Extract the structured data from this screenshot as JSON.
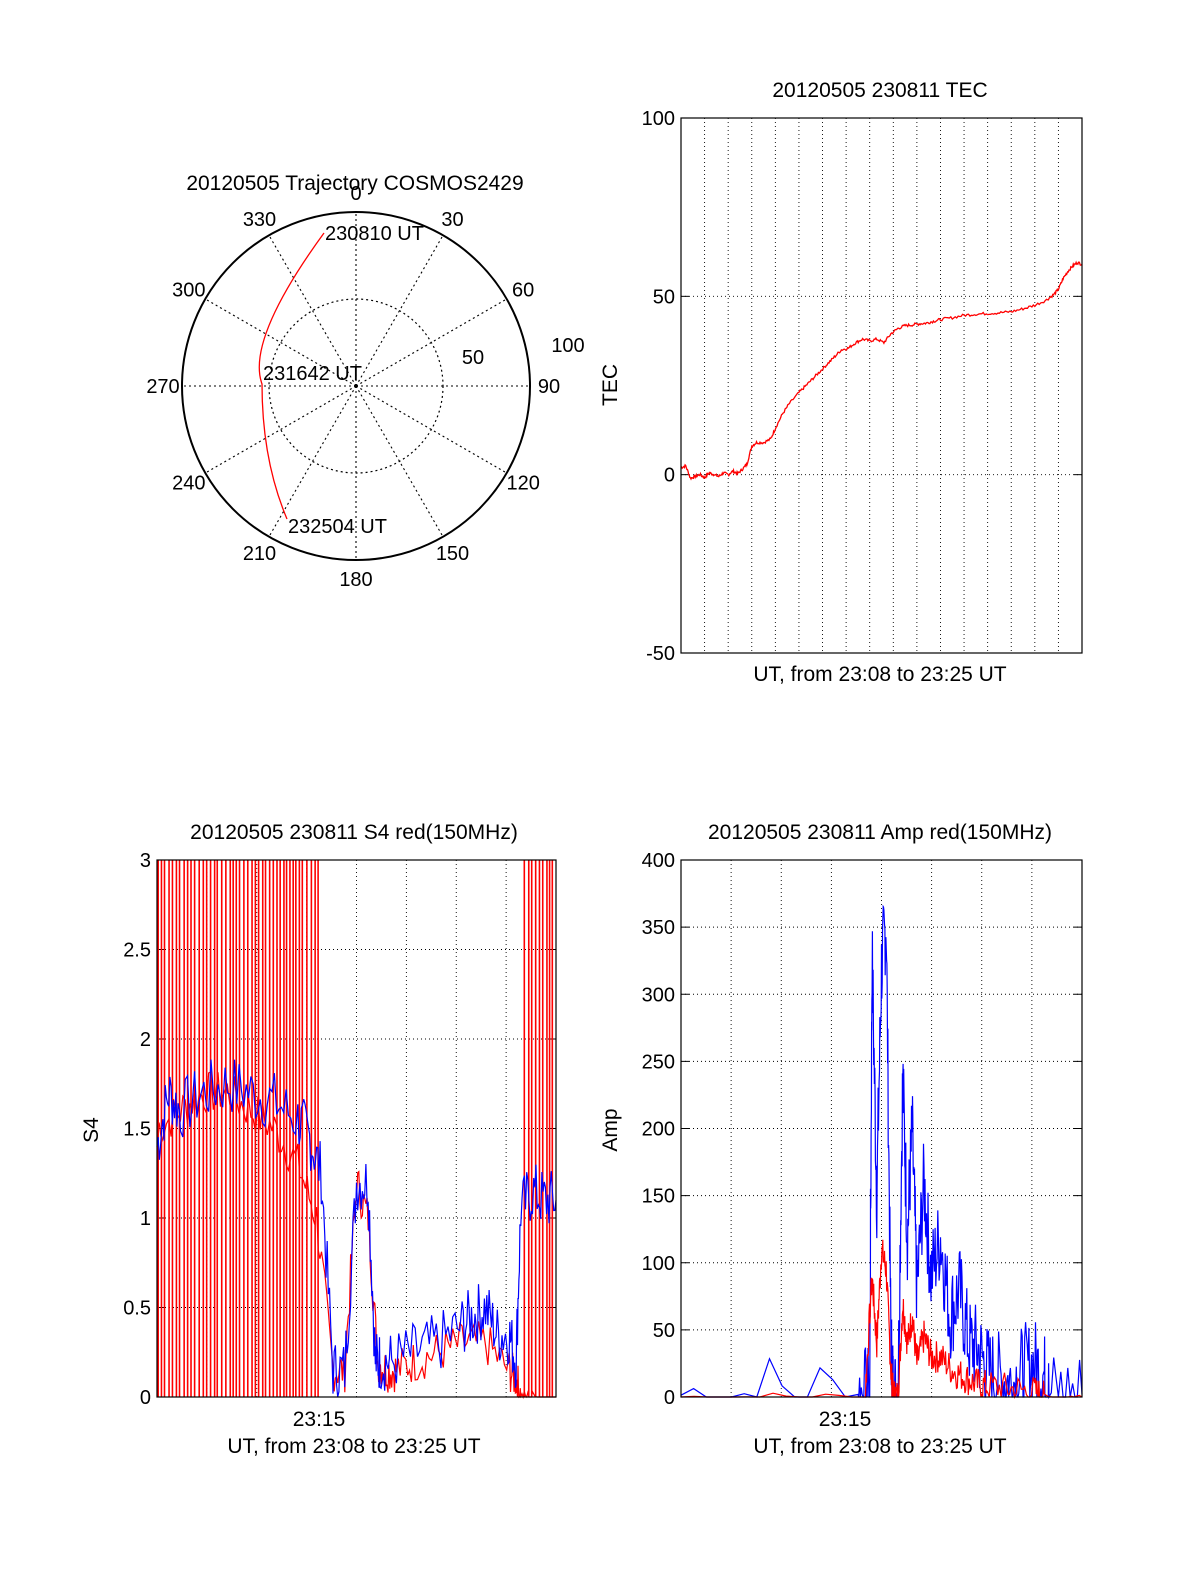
{
  "colors": {
    "red": "#ff0000",
    "blue": "#0000ff",
    "axis": "#000000",
    "grid": "#000000"
  },
  "chart_data": [
    {
      "type": "polar",
      "title": "20120505 Trajectory COSMOS2429",
      "azimuth_labels": [
        "0",
        "30",
        "60",
        "90",
        "120",
        "150",
        "180",
        "210",
        "240",
        "270",
        "300",
        "330"
      ],
      "elevation_ring_labels": [
        "50",
        "100"
      ],
      "track_labels": {
        "start": "230810 UT",
        "mid": "231642 UT",
        "end": "232504 UT"
      },
      "track_color": "red",
      "grid": true
    },
    {
      "type": "line",
      "title": "20120505 230811 TEC",
      "xlabel": "UT, from 23:08 to 23:25 UT",
      "ylabel": "TEC",
      "ylim": [
        -50,
        100
      ],
      "yticks": [
        "-50",
        "0",
        "50",
        "100"
      ],
      "xlim": [
        0,
        17
      ],
      "grid": true,
      "series": [
        {
          "color": "red",
          "x": [
            0,
            0.2,
            0.4,
            0.6,
            0.8,
            1.0,
            1.2,
            1.4,
            1.6,
            1.8,
            2.0,
            2.2,
            2.4,
            2.6,
            2.8,
            3.0,
            3.2,
            3.5,
            3.8,
            4.0,
            4.3,
            4.6,
            5.0,
            5.3,
            5.6,
            5.9,
            6.2,
            6.5,
            6.8,
            7.1,
            7.4,
            7.7,
            8.0,
            8.3,
            8.6,
            8.9,
            9.2,
            9.5,
            9.8,
            10.1,
            10.4,
            10.7,
            11.0,
            11.5,
            12.0,
            12.5,
            13.0,
            13.5,
            14.0,
            14.5,
            15.0,
            15.5,
            15.8,
            16.0,
            16.2,
            16.4,
            16.6,
            16.8,
            17.0
          ],
          "y": [
            2,
            2.5,
            -1,
            -0.5,
            0,
            -0.8,
            0.5,
            0,
            -0.5,
            0.5,
            0,
            1,
            0.3,
            1.5,
            3,
            8,
            9,
            9,
            10,
            13,
            17,
            20,
            23,
            25,
            27,
            29,
            31,
            33,
            35,
            35.5,
            37,
            38,
            37.5,
            38,
            37,
            39.5,
            41,
            41.8,
            42,
            42.3,
            42.5,
            43,
            43.5,
            44,
            44.7,
            45,
            45.2,
            45.4,
            45.7,
            46.5,
            47.5,
            49,
            50.5,
            52,
            55,
            57,
            58.5,
            59.5,
            59
          ]
        }
      ]
    },
    {
      "type": "line",
      "title": "20120505 230811 S4 red(150MHz)",
      "xlabel": "UT, from 23:08 to 23:25 UT",
      "ylabel": "S4",
      "ylim": [
        0,
        3
      ],
      "yticks": [
        "0",
        "0.5",
        "1",
        "1.5",
        "2",
        "2.5",
        "3"
      ],
      "xticklabel": "23:15",
      "xlim": [
        0,
        17
      ],
      "grid": true,
      "series": [
        {
          "color": "red",
          "note": "red spikes saturate 0–3 from 23:08 to ~23:15 and after ~23:23",
          "x": [
            0,
            1,
            2,
            3,
            4,
            5,
            6,
            6.8,
            7.5,
            8.0,
            8.5,
            9.0,
            9.4,
            9.8,
            10.2,
            11,
            12,
            13,
            14,
            15,
            15.3,
            15.5,
            16,
            17
          ],
          "y": [
            1.5,
            1.6,
            1.7,
            1.7,
            1.6,
            1.5,
            1.3,
            1.0,
            0.15,
            0.15,
            1.2,
            1.0,
            0.2,
            0.15,
            0.15,
            0.2,
            0.25,
            0.3,
            0.3,
            0.15,
            0.1,
            0,
            0,
            0
          ]
        },
        {
          "color": "blue",
          "x": [
            0,
            0.5,
            1,
            2,
            3,
            4,
            5,
            6,
            6.5,
            7.0,
            7.5,
            8.0,
            8.5,
            9.0,
            9.3,
            9.5,
            10.0,
            11.0,
            12.0,
            13.0,
            13.5,
            14.0,
            14.5,
            15.0,
            15.3,
            15.5,
            16.0,
            16.5,
            17.0
          ],
          "y": [
            1.4,
            1.7,
            1.6,
            1.7,
            1.75,
            1.7,
            1.65,
            1.55,
            1.45,
            1.25,
            0.15,
            0.15,
            1.2,
            1.2,
            0.2,
            0.2,
            0.2,
            0.25,
            0.3,
            0.4,
            0.45,
            0.5,
            0.35,
            0.35,
            0.2,
            1.05,
            1.15,
            1.1,
            1.1
          ]
        }
      ]
    },
    {
      "type": "line",
      "title": "20120505 230811 Amp red(150MHz)",
      "xlabel": "UT, from 23:08 to 23:25 UT",
      "ylabel": "Amp",
      "ylim": [
        0,
        400
      ],
      "yticks": [
        "0",
        "50",
        "100",
        "150",
        "200",
        "250",
        "300",
        "350",
        "400"
      ],
      "xticklabel": "23:15",
      "xlim": [
        0,
        17
      ],
      "grid": true,
      "series": [
        {
          "color": "blue",
          "x": [
            0,
            7.5,
            8.0,
            8.1,
            8.3,
            8.5,
            8.7,
            8.9,
            9.0,
            9.2,
            9.4,
            9.6,
            9.8,
            10.0,
            10.3,
            10.6,
            11.0,
            11.4,
            11.8,
            12.2,
            12.6,
            13.0,
            13.5,
            14.0,
            14.5,
            15.0,
            15.4,
            15.6,
            17.0
          ],
          "y": [
            2,
            2,
            5,
            330,
            150,
            320,
            355,
            40,
            5,
            3,
            240,
            120,
            200,
            80,
            160,
            90,
            120,
            60,
            80,
            40,
            35,
            20,
            15,
            10,
            20,
            25,
            15,
            2,
            2
          ]
        },
        {
          "color": "red",
          "x": [
            0,
            7.8,
            8.1,
            8.3,
            8.5,
            8.7,
            8.9,
            9.0,
            9.2,
            9.4,
            9.6,
            9.8,
            10.0,
            10.3,
            10.6,
            11.0,
            11.5,
            12.0,
            12.5,
            13.0,
            14.0,
            15.0,
            15.4,
            17.0
          ],
          "y": [
            0,
            0,
            90,
            40,
            110,
            95,
            20,
            2,
            1,
            70,
            40,
            60,
            25,
            45,
            30,
            30,
            20,
            15,
            10,
            8,
            6,
            4,
            0,
            0
          ]
        }
      ]
    }
  ]
}
